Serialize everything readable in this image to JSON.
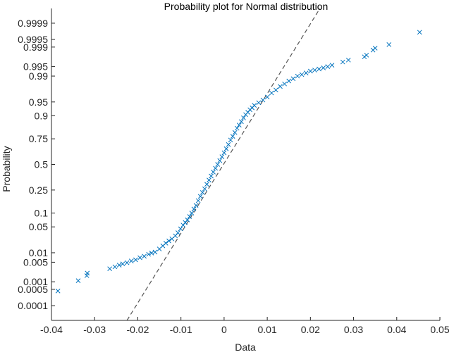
{
  "chart_data": {
    "type": "scatter",
    "title": "Probability plot for Normal distribution",
    "xlabel": "Data",
    "ylabel": "Probability",
    "xlim": [
      -0.04,
      0.05
    ],
    "x_ticks": [
      -0.04,
      -0.03,
      -0.02,
      -0.01,
      0,
      0.01,
      0.02,
      0.03,
      0.04,
      0.05
    ],
    "x_tick_labels": [
      "-0.04",
      "-0.03",
      "-0.02",
      "-0.01",
      "0",
      "0.01",
      "0.02",
      "0.03",
      "0.04",
      "0.05"
    ],
    "ylim_probability": [
      2e-05,
      0.99998
    ],
    "y_ticks": [
      0.0001,
      0.0005,
      0.001,
      0.005,
      0.01,
      0.05,
      0.1,
      0.25,
      0.5,
      0.75,
      0.9,
      0.95,
      0.99,
      0.995,
      0.999,
      0.9995,
      0.9999
    ],
    "y_tick_labels": [
      "0.0001",
      "0.0005",
      "0.001",
      "0.005",
      "0.01",
      "0.05",
      "0.1",
      "0.25",
      "0.5",
      "0.75",
      "0.9",
      "0.95",
      "0.99",
      "0.995",
      "0.999",
      "0.9995",
      "0.9999"
    ],
    "y_scale": "normal-probability",
    "grid": false,
    "marker": "x",
    "marker_color": "#0072BD",
    "reference_line": {
      "style": "dashed",
      "color": "#555555",
      "points": [
        [
          -0.0225,
          2e-05
        ],
        [
          0.0222,
          0.99998
        ]
      ]
    },
    "series": [
      {
        "points": [
          [
            -0.0385,
            0.00043
          ],
          [
            -0.0338,
            0.0011
          ],
          [
            -0.0318,
            0.0017
          ],
          [
            -0.0317,
            0.0021
          ],
          [
            -0.0265,
            0.003
          ],
          [
            -0.0253,
            0.0035
          ],
          [
            -0.0243,
            0.004
          ],
          [
            -0.0235,
            0.0044
          ],
          [
            -0.0225,
            0.0048
          ],
          [
            -0.0215,
            0.0055
          ],
          [
            -0.0205,
            0.006
          ],
          [
            -0.0195,
            0.007
          ],
          [
            -0.0185,
            0.0078
          ],
          [
            -0.0175,
            0.009
          ],
          [
            -0.0168,
            0.0098
          ],
          [
            -0.016,
            0.0105
          ],
          [
            -0.015,
            0.013
          ],
          [
            -0.0142,
            0.016
          ],
          [
            -0.0135,
            0.019
          ],
          [
            -0.0128,
            0.022
          ],
          [
            -0.0121,
            0.025
          ],
          [
            -0.0113,
            0.03
          ],
          [
            -0.0107,
            0.036
          ],
          [
            -0.0101,
            0.045
          ],
          [
            -0.0095,
            0.055
          ],
          [
            -0.009,
            0.063
          ],
          [
            -0.0085,
            0.072
          ],
          [
            -0.008,
            0.085
          ],
          [
            -0.0075,
            0.1
          ],
          [
            -0.007,
            0.12
          ],
          [
            -0.0065,
            0.14
          ],
          [
            -0.006,
            0.17
          ],
          [
            -0.0055,
            0.2
          ],
          [
            -0.005,
            0.23
          ],
          [
            -0.0045,
            0.26
          ],
          [
            -0.004,
            0.3
          ],
          [
            -0.0035,
            0.34
          ],
          [
            -0.003,
            0.38
          ],
          [
            -0.0025,
            0.42
          ],
          [
            -0.002,
            0.46
          ],
          [
            -0.0015,
            0.5
          ],
          [
            -0.001,
            0.54
          ],
          [
            -0.0005,
            0.58
          ],
          [
            0.0,
            0.62
          ],
          [
            0.0005,
            0.66
          ],
          [
            0.001,
            0.7
          ],
          [
            0.0015,
            0.74
          ],
          [
            0.002,
            0.77
          ],
          [
            0.0025,
            0.8
          ],
          [
            0.003,
            0.83
          ],
          [
            0.0035,
            0.85
          ],
          [
            0.004,
            0.87
          ],
          [
            0.0045,
            0.89
          ],
          [
            0.005,
            0.905
          ],
          [
            0.0055,
            0.915
          ],
          [
            0.006,
            0.925
          ],
          [
            0.0065,
            0.932
          ],
          [
            0.007,
            0.94
          ],
          [
            0.008,
            0.948
          ],
          [
            0.009,
            0.955
          ],
          [
            0.01,
            0.962
          ],
          [
            0.011,
            0.97
          ],
          [
            0.012,
            0.975
          ],
          [
            0.013,
            0.98
          ],
          [
            0.014,
            0.983
          ],
          [
            0.015,
            0.986
          ],
          [
            0.016,
            0.988
          ],
          [
            0.017,
            0.99
          ],
          [
            0.018,
            0.991
          ],
          [
            0.019,
            0.992
          ],
          [
            0.02,
            0.993
          ],
          [
            0.021,
            0.9935
          ],
          [
            0.022,
            0.994
          ],
          [
            0.023,
            0.9945
          ],
          [
            0.024,
            0.995
          ],
          [
            0.025,
            0.9955
          ],
          [
            0.0275,
            0.9965
          ],
          [
            0.0288,
            0.997
          ],
          [
            0.0325,
            0.9977
          ],
          [
            0.033,
            0.998
          ],
          [
            0.0345,
            0.9987
          ],
          [
            0.035,
            0.9989
          ],
          [
            0.0382,
            0.9992
          ],
          [
            0.0453,
            0.99975
          ]
        ]
      }
    ]
  }
}
